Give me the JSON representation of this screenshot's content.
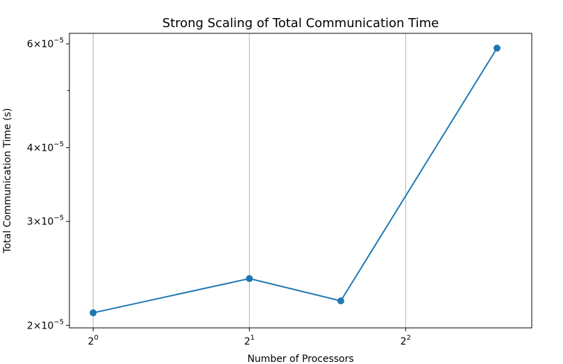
{
  "chart_data": {
    "type": "line",
    "title": "Strong Scaling of Total Communication Time",
    "xlabel": "Number of Processors",
    "ylabel": "Total Communication Time (s)",
    "xscale": "log2",
    "yscale": "log10",
    "xlim": [
      0.9,
      7.0
    ],
    "ylim": [
      1.98e-05,
      6.25e-05
    ],
    "grid": "x-major",
    "legend": "none",
    "x_ticks": [
      {
        "value": 1,
        "base": "2",
        "exp": "0"
      },
      {
        "value": 2,
        "base": "2",
        "exp": "1"
      },
      {
        "value": 4,
        "base": "2",
        "exp": "2"
      }
    ],
    "y_ticks": [
      {
        "value": 2e-05,
        "mant": "2",
        "exp": "−5"
      },
      {
        "value": 3e-05,
        "mant": "3",
        "exp": "−5"
      },
      {
        "value": 4e-05,
        "mant": "4",
        "exp": "−5"
      },
      {
        "value": 6e-05,
        "mant": "6",
        "exp": "−5"
      }
    ],
    "y_minor_ticks": [
      5e-05
    ],
    "times_sign": "×10",
    "series": [
      {
        "color": "#1f77b4",
        "marker": "circle",
        "x": [
          1,
          2,
          3,
          6
        ],
        "y": [
          2.1e-05,
          2.4e-05,
          2.2e-05,
          5.9e-05
        ]
      }
    ]
  }
}
